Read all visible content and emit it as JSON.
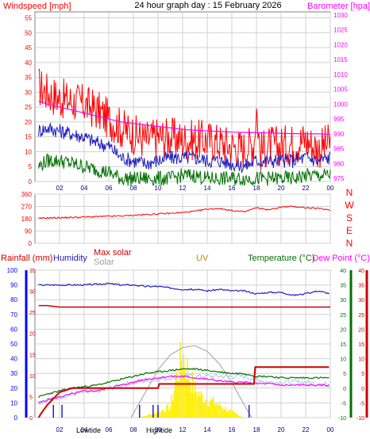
{
  "header": {
    "title": "24 hour graph day : 15 February 2026",
    "left_label": "Windspeed [mph]",
    "right_label": "Barometer [hpa]"
  },
  "colors": {
    "background": "#ffffff",
    "grid": "#d0d0d0",
    "axis": "#808080",
    "red": "#ff0000",
    "darkred": "#cc0000",
    "blue": "#0000ff",
    "navy": "#2020c0",
    "green": "#007000",
    "magenta": "#ff00ff",
    "gray": "#a0a0a0",
    "lightblue": "#a8c8e8",
    "yellow": "#ffee00",
    "orange": "#cc8800"
  },
  "chart_data": [
    {
      "id": "wind-baro",
      "type": "line",
      "title": "24 hour graph day : 15 February 2026",
      "x_ticks": [
        "02",
        "04",
        "06",
        "08",
        "10",
        "12",
        "14",
        "16",
        "18",
        "20",
        "22",
        "00"
      ],
      "y_left": {
        "label": "Windspeed [mph]",
        "ticks": [
          "0",
          "5",
          "10",
          "15",
          "20",
          "25",
          "30",
          "35",
          "40",
          "45",
          "50",
          "55"
        ],
        "range": [
          0,
          57
        ]
      },
      "y_right": {
        "label": "Barometer [hpa]",
        "ticks": [
          "975",
          "980",
          "985",
          "990",
          "995",
          "1000",
          "1005",
          "1010",
          "1015",
          "1020",
          "1025",
          "1030"
        ],
        "range": [
          974,
          1031
        ]
      },
      "series": [
        {
          "role": "gust",
          "color": "#ff0000",
          "x": [
            0.3,
            1,
            2,
            3,
            4,
            5,
            6,
            7,
            8,
            9,
            10,
            11,
            12,
            13,
            14,
            15,
            16,
            17,
            17.8,
            18,
            18.3,
            19,
            20,
            21,
            22,
            23,
            24
          ],
          "y": [
            32,
            30,
            28,
            27,
            26,
            24,
            21,
            18,
            16,
            14,
            15,
            15,
            14,
            14,
            14,
            13,
            12,
            11,
            13,
            25,
            10,
            12,
            12,
            13,
            14,
            11,
            13
          ]
        },
        {
          "role": "avg",
          "color": "#2020c0",
          "x": [
            0.3,
            1,
            2,
            3,
            4,
            5,
            6,
            7,
            8,
            9,
            10,
            11,
            12,
            13,
            14,
            15,
            16,
            17,
            18,
            19,
            20,
            21,
            22,
            23,
            24
          ],
          "y": [
            17,
            18,
            17,
            16,
            15,
            13,
            12,
            8,
            7,
            6,
            7,
            8,
            8,
            8,
            7,
            7,
            6,
            5,
            7,
            7,
            7,
            7,
            8,
            7,
            8
          ]
        },
        {
          "role": "min",
          "color": "#007000",
          "x": [
            0.3,
            1,
            2,
            3,
            4,
            5,
            6,
            7,
            8,
            9,
            10,
            11,
            12,
            13,
            14,
            15,
            16,
            17,
            18,
            19,
            20,
            21,
            22,
            23,
            24
          ],
          "y": [
            5,
            7,
            7,
            6,
            5,
            4,
            3,
            1,
            1,
            1,
            1,
            1,
            2,
            2,
            1,
            1,
            1,
            1,
            1,
            1,
            1,
            1,
            2,
            2,
            2
          ]
        },
        {
          "role": "barometer",
          "color": "#ff00ff",
          "x": [
            0.3,
            1,
            2,
            3,
            4,
            5,
            6,
            7,
            8,
            9,
            10,
            11,
            12,
            13,
            14,
            15,
            16,
            17,
            18,
            19,
            20,
            21,
            22,
            23,
            24
          ],
          "y": [
            1001,
            1000,
            999,
            998,
            997,
            996,
            995,
            994,
            993.5,
            993,
            992.5,
            992,
            991.5,
            991.2,
            991,
            990.8,
            990.6,
            990.5,
            990.4,
            990.3,
            990.2,
            990.1,
            990,
            990,
            989.8
          ]
        }
      ]
    },
    {
      "id": "wind-direction",
      "type": "line",
      "y_ticks": [
        "0",
        "90",
        "180",
        "270",
        "360"
      ],
      "compass": [
        "N",
        "W",
        "S",
        "E",
        "N"
      ],
      "range": [
        0,
        360
      ],
      "series": [
        {
          "role": "direction",
          "color": "#ff0000",
          "x": [
            0.3,
            1,
            2,
            3,
            4,
            5,
            6,
            7,
            8,
            9,
            10,
            11,
            12,
            13,
            14,
            15,
            16,
            17,
            18,
            19,
            20,
            21,
            22,
            23,
            24
          ],
          "y": [
            182,
            186,
            188,
            190,
            192,
            195,
            198,
            200,
            205,
            210,
            215,
            220,
            225,
            235,
            250,
            255,
            240,
            230,
            260,
            245,
            265,
            270,
            260,
            255,
            245
          ]
        }
      ]
    },
    {
      "id": "rain-temp-solar",
      "type": "line",
      "x_ticks": [
        "02",
        "04",
        "06",
        "08",
        "10",
        "12",
        "14",
        "16",
        "18",
        "20",
        "22",
        "00"
      ],
      "labels": {
        "rainfall": "Rainfall (mm)",
        "humidity": "Humidity",
        "max_solar": "Max solar",
        "solar": "Solar",
        "uv": "UV",
        "temperature": "Temperature (°C)",
        "dew_point": "Dew Point (°C)",
        "low_tide": "Lowtide",
        "high_tide": "Hightide"
      },
      "y_humidity": {
        "ticks": [
          "0",
          "10",
          "20",
          "30",
          "40",
          "50",
          "60",
          "70",
          "80",
          "90",
          "100"
        ],
        "range": [
          0,
          100
        ]
      },
      "y_rain": {
        "ticks": [
          "0",
          "5",
          "10",
          "15",
          "20",
          "25",
          "30",
          "35"
        ],
        "range": [
          0,
          35
        ]
      },
      "y_temp": {
        "ticks": [
          "-10",
          "-5",
          "0",
          "5",
          "10",
          "15",
          "20",
          "25",
          "30",
          "35",
          "40"
        ],
        "range": [
          -10,
          40
        ]
      },
      "series": [
        {
          "role": "humidity",
          "color": "#2020c0",
          "x": [
            0.3,
            2,
            4,
            6,
            7,
            8,
            9,
            10,
            11,
            12,
            13,
            14,
            15,
            16,
            17,
            18,
            19,
            20,
            21,
            22,
            23,
            24
          ],
          "y": [
            90,
            90,
            90,
            91,
            90,
            90,
            89,
            89,
            88,
            87,
            87,
            86,
            87,
            86,
            86,
            84,
            85,
            85,
            83,
            84,
            86,
            84
          ]
        },
        {
          "role": "temperature",
          "color": "#007000",
          "x": [
            0.3,
            1,
            2,
            3,
            4,
            5,
            6,
            7,
            8,
            9,
            10,
            11,
            12,
            13,
            14,
            15,
            16,
            17,
            18,
            19,
            20,
            21,
            22,
            23,
            24
          ],
          "y": [
            -3,
            -2,
            -1,
            0,
            0.5,
            1,
            2,
            3,
            4,
            5,
            5.5,
            6,
            6.5,
            6.5,
            6,
            5.5,
            5,
            5,
            4,
            4,
            3.5,
            3.5,
            3.5,
            3.5,
            3.5
          ]
        },
        {
          "role": "dew_point",
          "color": "#ff00ff",
          "x": [
            0.3,
            1,
            2,
            3,
            4,
            5,
            6,
            7,
            8,
            9,
            10,
            11,
            12,
            13,
            14,
            15,
            16,
            17,
            18,
            19,
            20,
            21,
            22,
            23,
            24
          ],
          "y": [
            -5,
            -4,
            -3,
            -2,
            -1,
            -1,
            0,
            1,
            2,
            3,
            3.5,
            4,
            4,
            3.5,
            3,
            2.5,
            2,
            2,
            1.5,
            1.5,
            1,
            1,
            1,
            1,
            1
          ]
        },
        {
          "role": "max_temp",
          "color": "#cc0000",
          "x": [
            0.3,
            1,
            2,
            3,
            4,
            6,
            8,
            10,
            12,
            14,
            16,
            18,
            20,
            22,
            24
          ],
          "y": [
            28,
            28,
            27.5,
            27.5,
            27.5,
            27.5,
            27.5,
            27.5,
            27.5,
            27.5,
            27.5,
            27.5,
            27.5,
            27.5,
            27.5
          ]
        },
        {
          "role": "max_solar",
          "color": "#a0a0a0",
          "x": [
            7.8,
            9,
            10,
            11,
            12,
            13,
            14,
            15,
            16,
            17,
            17.6
          ],
          "y": [
            0,
            14,
            26,
            34,
            38,
            39,
            36,
            29,
            19,
            7,
            0
          ]
        },
        {
          "role": "solar",
          "color": "#ffee00",
          "x": [
            8,
            9,
            10,
            11,
            11.5,
            12,
            12.5,
            13,
            13.5,
            14,
            15,
            16,
            17
          ],
          "y": [
            0,
            1,
            3,
            6,
            22,
            35,
            24,
            15,
            12,
            10,
            7,
            3,
            0
          ]
        },
        {
          "role": "rainfall",
          "color": "#cc0000",
          "x": [
            0.3,
            0.5,
            1,
            1.5,
            2,
            2.5,
            3,
            4,
            5,
            6,
            8,
            10,
            10.1,
            12,
            14,
            16,
            17.8,
            17.9,
            18,
            20,
            22,
            23.9
          ],
          "y": [
            0,
            1,
            3,
            4.5,
            6,
            6.5,
            7,
            7,
            7,
            7,
            7,
            7,
            8,
            8,
            8,
            8,
            8,
            12,
            12,
            12,
            12,
            12
          ]
        },
        {
          "role": "light_blue",
          "color": "#a8c8e8",
          "x": [
            0.3,
            1,
            2,
            3,
            4,
            5,
            6,
            8,
            10,
            12,
            14,
            16,
            17,
            18,
            19,
            20,
            21,
            22,
            23,
            24
          ],
          "y": [
            -5,
            -4,
            -3,
            -2,
            -1.5,
            -1,
            0,
            2,
            3,
            4,
            4,
            4,
            4,
            3,
            2,
            2,
            2,
            2,
            1.5,
            1
          ]
        }
      ]
    }
  ]
}
